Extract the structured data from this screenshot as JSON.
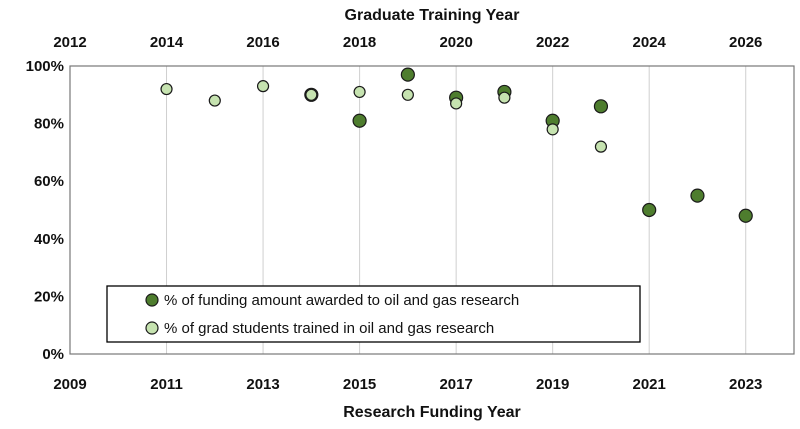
{
  "chart_data": {
    "type": "scatter",
    "title": "",
    "xlabel": "Research Funding Year",
    "x2label": "Graduate Training Year",
    "ylabel": "",
    "xlim": [
      2009,
      2024
    ],
    "x2lim": [
      2012,
      2027
    ],
    "ylim": [
      0,
      100
    ],
    "x_ticks": [
      "2009",
      "2011",
      "2013",
      "2015",
      "2017",
      "2019",
      "2021",
      "2023"
    ],
    "x2_ticks": [
      "2012",
      "2014",
      "2016",
      "2018",
      "2020",
      "2022",
      "2024",
      "2026"
    ],
    "y_ticks": [
      "0%",
      "20%",
      "40%",
      "60%",
      "80%",
      "100%"
    ],
    "y_tick_values": [
      0,
      20,
      40,
      60,
      80,
      100
    ],
    "grid": "vertical",
    "legend_position": "bottom-left",
    "series": [
      {
        "name": "% of funding amount awarded to oil and gas research",
        "color": "#4e7d2e",
        "x": [
          2014,
          2015,
          2016,
          2017,
          2018,
          2019,
          2020,
          2021,
          2022,
          2023
        ],
        "y": [
          90,
          81,
          97,
          89,
          91,
          81,
          86,
          50,
          55,
          48
        ]
      },
      {
        "name": "% of grad students trained in oil and gas research",
        "color": "#c6e3b0",
        "x": [
          2011,
          2012,
          2013,
          2014,
          2015,
          2016,
          2017,
          2018,
          2019,
          2020
        ],
        "y": [
          92,
          88,
          93,
          90,
          91,
          90,
          87,
          89,
          78,
          72
        ]
      }
    ]
  }
}
